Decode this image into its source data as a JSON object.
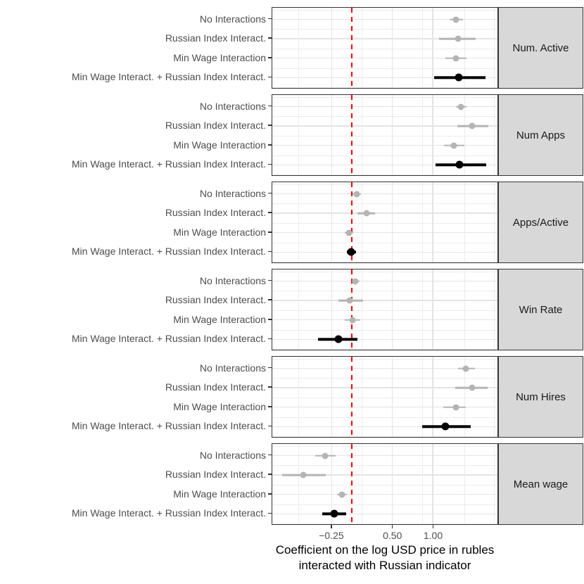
{
  "chart_data": {
    "type": "scatter",
    "subtype": "faceted-point-range-coefficient-plot",
    "xlabel_line1": "Coefficient on the log USD price in rubles",
    "xlabel_line2": "interacted with Russian indicator",
    "x_domain": [
      -0.985,
      1.8
    ],
    "x_ticks": [
      {
        "value": -0.25,
        "label": "−0.25"
      },
      {
        "value": 0.5,
        "label": "0.50"
      },
      {
        "value": 1.0,
        "label": "1.00"
      }
    ],
    "grid_x_major": [
      -0.25,
      0.5,
      1.0
    ],
    "grid_x_minor": [
      -0.66,
      0.12,
      0.87,
      1.39,
      1.76
    ],
    "reference_line": {
      "x": 0,
      "style": "dashed",
      "color": "#ff0000"
    },
    "row_labels": [
      "No Interactions",
      "Russian Index Interact.",
      "Min Wage Interaction",
      "Min Wage Interact. + Russian Index Interact."
    ],
    "legend_position": "none",
    "facets": [
      {
        "label": "Num. Active",
        "estimates": [
          {
            "model": "No Interactions",
            "est": 1.29,
            "lo": 1.21,
            "hi": 1.37,
            "emphasis": false
          },
          {
            "model": "Russian Index Interact.",
            "est": 1.31,
            "lo": 1.08,
            "hi": 1.53,
            "emphasis": false
          },
          {
            "model": "Min Wage Interaction",
            "est": 1.29,
            "lo": 1.16,
            "hi": 1.42,
            "emphasis": false
          },
          {
            "model": "Min Wage Interact. + Russian Index Interact.",
            "est": 1.32,
            "lo": 1.02,
            "hi": 1.65,
            "emphasis": true
          }
        ]
      },
      {
        "label": "Num Apps",
        "estimates": [
          {
            "model": "No Interactions",
            "est": 1.35,
            "lo": 1.29,
            "hi": 1.42,
            "emphasis": false
          },
          {
            "model": "Russian Index Interact.",
            "est": 1.49,
            "lo": 1.3,
            "hi": 1.69,
            "emphasis": false
          },
          {
            "model": "Min Wage Interaction",
            "est": 1.26,
            "lo": 1.14,
            "hi": 1.39,
            "emphasis": false
          },
          {
            "model": "Min Wage Interact. + Russian Index Interact.",
            "est": 1.33,
            "lo": 1.03,
            "hi": 1.66,
            "emphasis": true
          }
        ]
      },
      {
        "label": "Apps/Active",
        "estimates": [
          {
            "model": "No Interactions",
            "est": 0.06,
            "lo": 0.01,
            "hi": 0.11,
            "emphasis": false
          },
          {
            "model": "Russian Index Interact.",
            "est": 0.18,
            "lo": 0.07,
            "hi": 0.29,
            "emphasis": false
          },
          {
            "model": "Min Wage Interaction",
            "est": -0.04,
            "lo": -0.09,
            "hi": 0.02,
            "emphasis": false
          },
          {
            "model": "Min Wage Interact. + Russian Index Interact.",
            "est": -0.01,
            "lo": -0.06,
            "hi": 0.05,
            "emphasis": true
          }
        ]
      },
      {
        "label": "Win Rate",
        "estimates": [
          {
            "model": "No Interactions",
            "est": 0.04,
            "lo": 0.0,
            "hi": 0.09,
            "emphasis": false
          },
          {
            "model": "Russian Index Interact.",
            "est": -0.03,
            "lo": -0.17,
            "hi": 0.14,
            "emphasis": false
          },
          {
            "model": "Min Wage Interaction",
            "est": 0.01,
            "lo": -0.09,
            "hi": 0.1,
            "emphasis": false
          },
          {
            "model": "Min Wage Interact. + Russian Index Interact.",
            "est": -0.17,
            "lo": -0.42,
            "hi": 0.07,
            "emphasis": true
          }
        ]
      },
      {
        "label": "Num Hires",
        "estimates": [
          {
            "model": "No Interactions",
            "est": 1.41,
            "lo": 1.31,
            "hi": 1.52,
            "emphasis": false
          },
          {
            "model": "Russian Index Interact.",
            "est": 1.49,
            "lo": 1.28,
            "hi": 1.68,
            "emphasis": false
          },
          {
            "model": "Min Wage Interaction",
            "est": 1.29,
            "lo": 1.13,
            "hi": 1.41,
            "emphasis": false
          },
          {
            "model": "Min Wage Interact. + Russian Index Interact.",
            "est": 1.16,
            "lo": 0.87,
            "hi": 1.47,
            "emphasis": true
          }
        ]
      },
      {
        "label": "Mean wage",
        "estimates": [
          {
            "model": "No Interactions",
            "est": -0.33,
            "lo": -0.45,
            "hi": -0.2,
            "emphasis": false
          },
          {
            "model": "Russian Index Interact.",
            "est": -0.6,
            "lo": -0.86,
            "hi": -0.32,
            "emphasis": false
          },
          {
            "model": "Min Wage Interaction",
            "est": -0.12,
            "lo": -0.18,
            "hi": -0.06,
            "emphasis": false
          },
          {
            "model": "Min Wage Interact. + Russian Index Interact.",
            "est": -0.22,
            "lo": -0.37,
            "hi": -0.07,
            "emphasis": true
          }
        ]
      }
    ],
    "colors": {
      "point_default": "#b4b4b4",
      "point_emphasis": "#000000",
      "reference": "#ff0000",
      "strip_background": "#d8d8d8",
      "panel_border": "#333333",
      "grid_major": "#e4e4e4",
      "grid_minor": "#ececec",
      "axis_text": "#4d4d4d",
      "title_text": "#000000"
    }
  }
}
